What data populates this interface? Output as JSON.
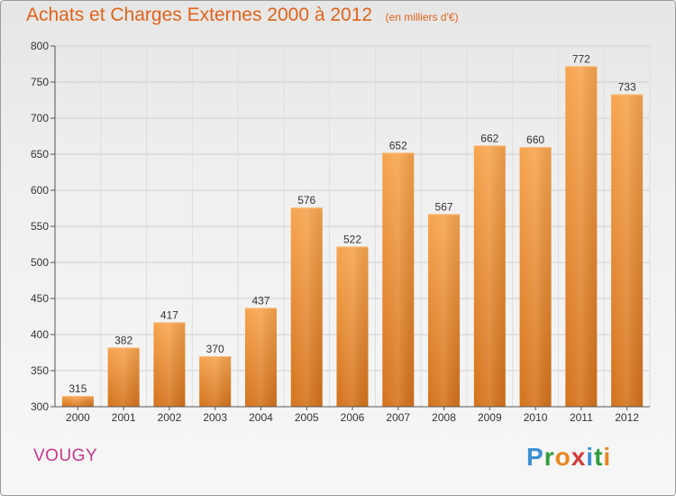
{
  "header": {
    "title": "Achats et Charges Externes 2000 à 2012",
    "subtitle": "(en milliers d'€)"
  },
  "footer": {
    "commune": "VOUGY",
    "brand": [
      "P",
      "r",
      "o",
      "x",
      "i",
      "t",
      "i"
    ],
    "brand_colors": [
      "#3d8fd6",
      "#2f9d3a",
      "#e8861f",
      "#d33b3b",
      "#3d8fd6",
      "#2f9d3a",
      "#e8861f"
    ]
  },
  "chart_data": {
    "type": "bar",
    "title": "Achats et Charges Externes 2000 à 2012",
    "categories": [
      "2000",
      "2001",
      "2002",
      "2003",
      "2004",
      "2005",
      "2006",
      "2007",
      "2008",
      "2009",
      "2010",
      "2011",
      "2012"
    ],
    "values": [
      315,
      382,
      417,
      370,
      437,
      576,
      522,
      652,
      567,
      662,
      660,
      772,
      733
    ],
    "ylim": [
      300,
      800
    ],
    "yticks": [
      300,
      350,
      400,
      450,
      500,
      550,
      600,
      650,
      700,
      750,
      800
    ],
    "grid": true,
    "bar_color": "#f08a2c",
    "xlabel": "",
    "ylabel": ""
  }
}
